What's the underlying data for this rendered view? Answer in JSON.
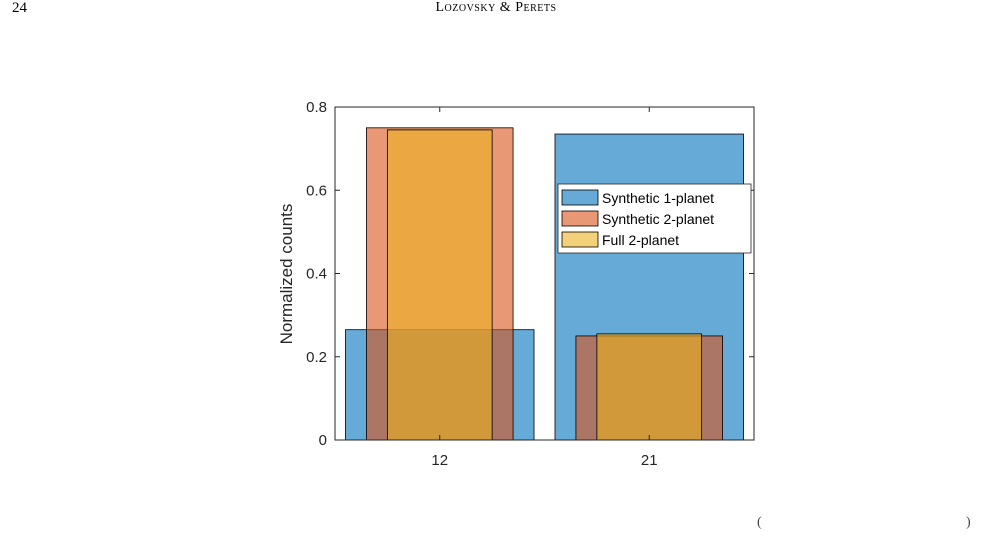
{
  "page": {
    "number": "24",
    "running_head": "Lozovsky & Perets",
    "edge_marks": {
      "left": "(",
      "right": ")"
    }
  },
  "chart_data": {
    "type": "bar",
    "categories": [
      "12",
      "21"
    ],
    "ylabel": "Normalized counts",
    "xlabel": "",
    "ylim": [
      0,
      0.8
    ],
    "yticks": [
      "0",
      "0.2",
      "0.4",
      "0.6",
      "0.8"
    ],
    "legend": "upper-right",
    "series": [
      {
        "name": "Synthetic 1-planet",
        "values": [
          0.265,
          0.735
        ],
        "color": "#0072BD"
      },
      {
        "name": "Synthetic 2-planet",
        "values": [
          0.75,
          0.25
        ],
        "color": "#D95319"
      },
      {
        "name": "Full 2-planet",
        "values": [
          0.745,
          0.255
        ],
        "color": "#EDB120"
      }
    ],
    "bar_width_fraction": [
      0.9,
      0.7,
      0.5
    ],
    "bar_opacity": 0.6
  }
}
